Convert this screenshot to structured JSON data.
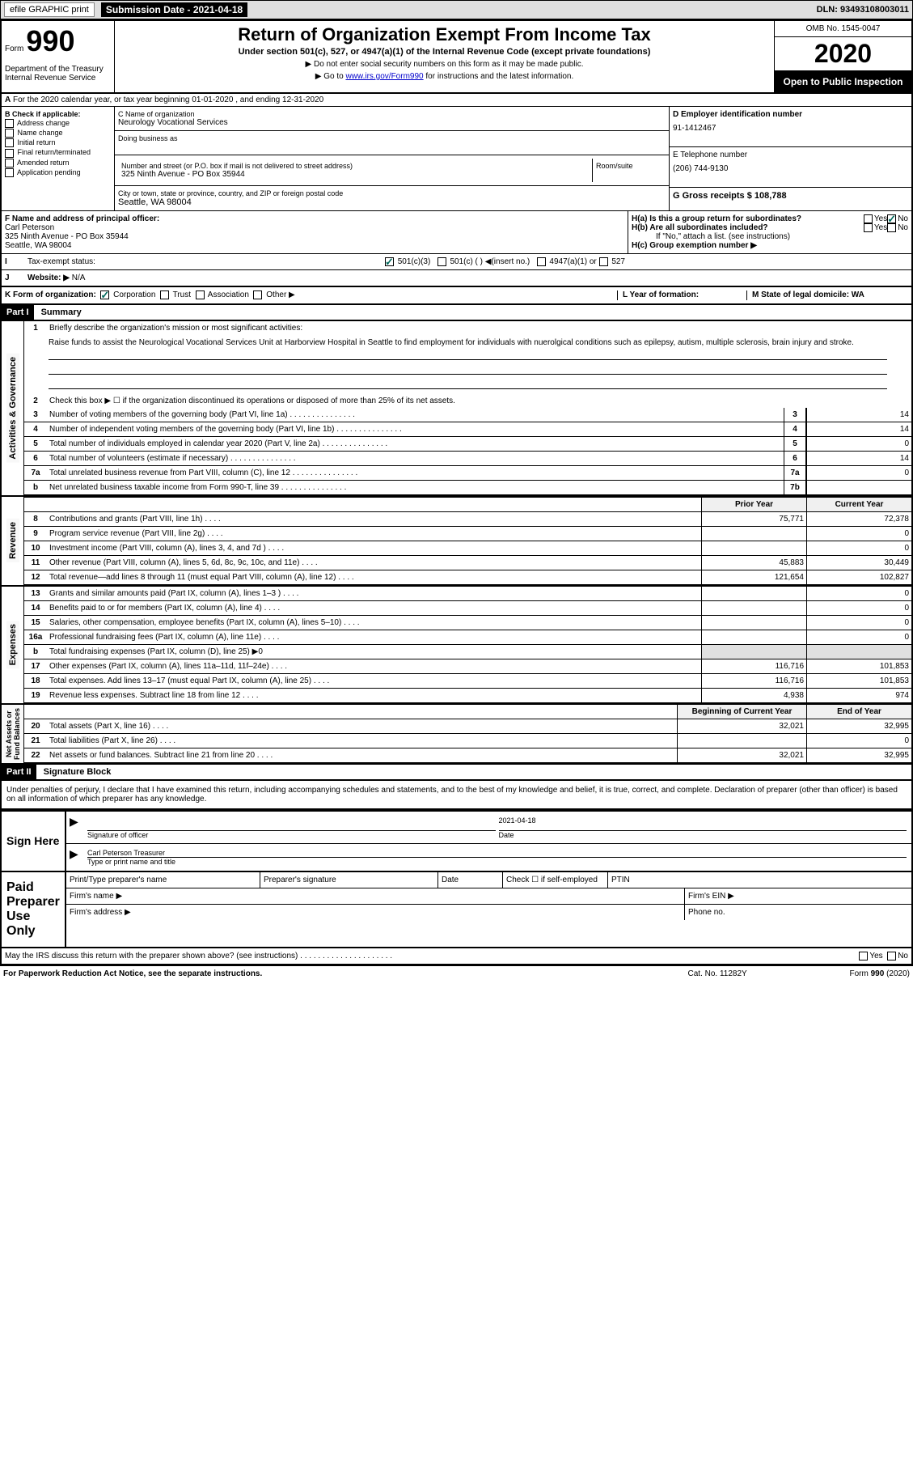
{
  "header": {
    "efile_label": "efile GRAPHIC print",
    "submission_label": "Submission Date - 2021-04-18",
    "dln": "DLN: 93493108003011"
  },
  "form_header": {
    "form_label": "Form",
    "form_number": "990",
    "title": "Return of Organization Exempt From Income Tax",
    "subtitle": "Under section 501(c), 527, or 4947(a)(1) of the Internal Revenue Code (except private foundations)",
    "instruction1": "▶ Do not enter social security numbers on this form as it may be made public.",
    "instruction2_pre": "▶ Go to ",
    "instruction2_link": "www.irs.gov/Form990",
    "instruction2_post": " for instructions and the latest information.",
    "dept": "Department of the Treasury\nInternal Revenue Service",
    "omb": "OMB No. 1545-0047",
    "year": "2020",
    "open_public": "Open to Public Inspection"
  },
  "section_a": "For the 2020 calendar year, or tax year beginning 01-01-2020    , and ending 12-31-2020",
  "section_b": {
    "label": "B Check if applicable:",
    "items": [
      "Address change",
      "Name change",
      "Initial return",
      "Final return/terminated",
      "Amended return",
      "Application pending"
    ]
  },
  "section_c": {
    "name_label": "C Name of organization",
    "name": "Neurology Vocational Services",
    "dba_label": "Doing business as",
    "address_label": "Number and street (or P.O. box if mail is not delivered to street address)",
    "room_label": "Room/suite",
    "address": "325 Ninth Avenue - PO Box 35944",
    "city_label": "City or town, state or province, country, and ZIP or foreign postal code",
    "city": "Seattle, WA  98004"
  },
  "section_d": {
    "label": "D Employer identification number",
    "value": "91-1412467"
  },
  "section_e": {
    "label": "E Telephone number",
    "value": "(206) 744-9130"
  },
  "section_g": {
    "label": "G Gross receipts $ 108,788"
  },
  "section_f": {
    "label": "F  Name and address of principal officer:",
    "name": "Carl Peterson",
    "address": "325 Ninth Avenue - PO Box 35944",
    "city": "Seattle, WA  98004"
  },
  "section_h": {
    "ha": "H(a)  Is this a group return for subordinates?",
    "hb": "H(b)  Are all subordinates included?",
    "hb_note": "If \"No,\" attach a list. (see instructions)",
    "hc": "H(c)  Group exemption number ▶"
  },
  "tax_exempt": {
    "label": "Tax-exempt status:",
    "opt1": "501(c)(3)",
    "opt2": "501(c) (  ) ◀(insert no.)",
    "opt3": "4947(a)(1) or",
    "opt4": "527"
  },
  "website": {
    "label": "Website: ▶",
    "value": "N/A"
  },
  "section_k": {
    "label": "K Form of organization:",
    "opts": [
      "Corporation",
      "Trust",
      "Association",
      "Other ▶"
    ],
    "l_label": "L Year of formation:",
    "m_label": "M State of legal domicile: WA"
  },
  "part1": {
    "header": "Part I",
    "title": "Summary",
    "q1": "Briefly describe the organization's mission or most significant activities:",
    "mission": "Raise funds to assist the Neurological Vocational Services Unit at Harborview Hospital in Seattle to find employment for individuals with nuerolgical conditions such as epilepsy, autism, multiple sclerosis, brain injury and stroke.",
    "q2": "Check this box ▶ ☐  if the organization discontinued its operations or disposed of more than 25% of its net assets.",
    "rows_governance": [
      {
        "n": "3",
        "desc": "Number of voting members of the governing body (Part VI, line 1a)",
        "box": "3",
        "val": "14"
      },
      {
        "n": "4",
        "desc": "Number of independent voting members of the governing body (Part VI, line 1b)",
        "box": "4",
        "val": "14"
      },
      {
        "n": "5",
        "desc": "Total number of individuals employed in calendar year 2020 (Part V, line 2a)",
        "box": "5",
        "val": "0"
      },
      {
        "n": "6",
        "desc": "Total number of volunteers (estimate if necessary)",
        "box": "6",
        "val": "14"
      },
      {
        "n": "7a",
        "desc": "Total unrelated business revenue from Part VIII, column (C), line 12",
        "box": "7a",
        "val": "0"
      },
      {
        "n": "b",
        "desc": "Net unrelated business taxable income from Form 990-T, line 39",
        "box": "7b",
        "val": ""
      }
    ],
    "prior_year": "Prior Year",
    "current_year": "Current Year",
    "revenue_rows": [
      {
        "n": "8",
        "desc": "Contributions and grants (Part VIII, line 1h)",
        "py": "75,771",
        "cy": "72,378"
      },
      {
        "n": "9",
        "desc": "Program service revenue (Part VIII, line 2g)",
        "py": "",
        "cy": "0"
      },
      {
        "n": "10",
        "desc": "Investment income (Part VIII, column (A), lines 3, 4, and 7d )",
        "py": "",
        "cy": "0"
      },
      {
        "n": "11",
        "desc": "Other revenue (Part VIII, column (A), lines 5, 6d, 8c, 9c, 10c, and 11e)",
        "py": "45,883",
        "cy": "30,449"
      },
      {
        "n": "12",
        "desc": "Total revenue—add lines 8 through 11 (must equal Part VIII, column (A), line 12)",
        "py": "121,654",
        "cy": "102,827"
      }
    ],
    "expense_rows": [
      {
        "n": "13",
        "desc": "Grants and similar amounts paid (Part IX, column (A), lines 1–3 )",
        "py": "",
        "cy": "0"
      },
      {
        "n": "14",
        "desc": "Benefits paid to or for members (Part IX, column (A), line 4)",
        "py": "",
        "cy": "0"
      },
      {
        "n": "15",
        "desc": "Salaries, other compensation, employee benefits (Part IX, column (A), lines 5–10)",
        "py": "",
        "cy": "0"
      },
      {
        "n": "16a",
        "desc": "Professional fundraising fees (Part IX, column (A), line 11e)",
        "py": "",
        "cy": "0"
      },
      {
        "n": "b",
        "desc": "Total fundraising expenses (Part IX, column (D), line 25) ▶0",
        "grey": true
      },
      {
        "n": "17",
        "desc": "Other expenses (Part IX, column (A), lines 11a–11d, 11f–24e)",
        "py": "116,716",
        "cy": "101,853"
      },
      {
        "n": "18",
        "desc": "Total expenses. Add lines 13–17 (must equal Part IX, column (A), line 25)",
        "py": "116,716",
        "cy": "101,853"
      },
      {
        "n": "19",
        "desc": "Revenue less expenses. Subtract line 18 from line 12",
        "py": "4,938",
        "cy": "974"
      }
    ],
    "bcy": "Beginning of Current Year",
    "eoy": "End of Year",
    "asset_rows": [
      {
        "n": "20",
        "desc": "Total assets (Part X, line 16)",
        "py": "32,021",
        "cy": "32,995"
      },
      {
        "n": "21",
        "desc": "Total liabilities (Part X, line 26)",
        "py": "",
        "cy": "0"
      },
      {
        "n": "22",
        "desc": "Net assets or fund balances. Subtract line 21 from line 20",
        "py": "32,021",
        "cy": "32,995"
      }
    ]
  },
  "part2": {
    "header": "Part II",
    "title": "Signature Block",
    "declaration": "Under penalties of perjury, I declare that I have examined this return, including accompanying schedules and statements, and to the best of my knowledge and belief, it is true, correct, and complete. Declaration of preparer (other than officer) is based on all information of which preparer has any knowledge."
  },
  "sign": {
    "label": "Sign Here",
    "sig_label": "Signature of officer",
    "date_label": "Date",
    "date": "2021-04-18",
    "name": "Carl Peterson  Treasurer",
    "name_label": "Type or print name and title"
  },
  "paid": {
    "label": "Paid Preparer Use Only",
    "name_label": "Print/Type preparer's name",
    "sig_label": "Preparer's signature",
    "date_label": "Date",
    "check_label": "Check ☐ if self-employed",
    "ptin_label": "PTIN",
    "firm_name": "Firm's name    ▶",
    "firm_ein": "Firm's EIN ▶",
    "firm_addr": "Firm's address ▶",
    "phone": "Phone no."
  },
  "footer": {
    "discuss": "May the IRS discuss this return with the preparer shown above? (see instructions)",
    "paperwork": "For Paperwork Reduction Act Notice, see the separate instructions.",
    "cat": "Cat. No. 11282Y",
    "form": "Form 990 (2020)"
  }
}
